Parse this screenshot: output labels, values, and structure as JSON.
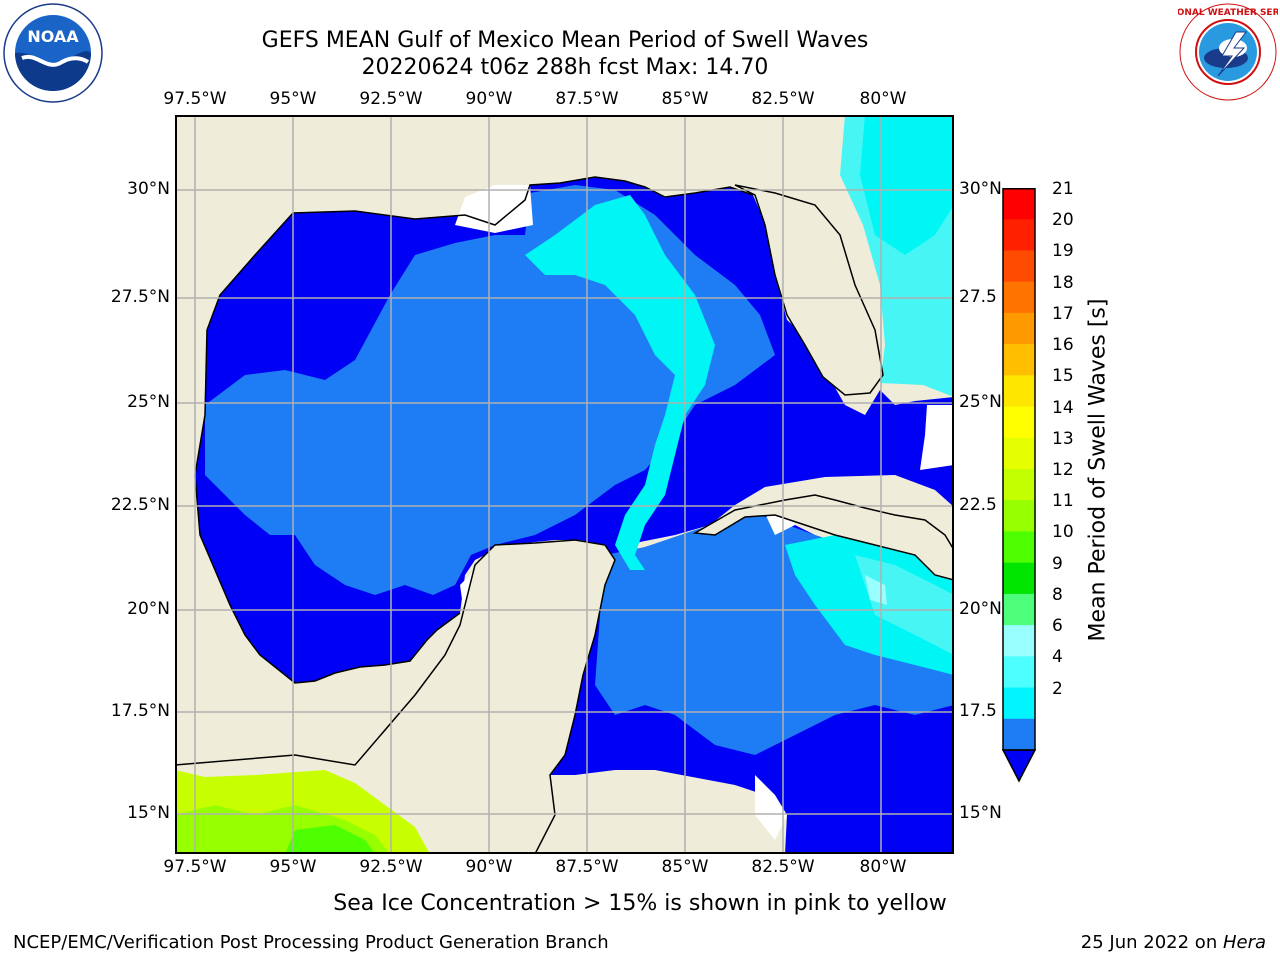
{
  "header": {
    "title_line1": "GEFS MEAN Gulf of Mexico Mean Period of Swell Waves",
    "title_line2": "20220624 t06z 288h fcst   Max: 14.70"
  },
  "map": {
    "lon_labels": [
      "97.5°W",
      "95°W",
      "92.5°W",
      "90°W",
      "87.5°W",
      "85°W",
      "82.5°W",
      "80°W"
    ],
    "lat_labels_left": [
      "30°N",
      "27.5°N",
      "25°N",
      "22.5°N",
      "20°N",
      "17.5°N",
      "15°N"
    ],
    "lat_labels_right": [
      "30°N",
      "27.5",
      "25°N",
      "22.5",
      "20°N",
      "17.5",
      "15°N"
    ],
    "colors": {
      "land": "#efedd9",
      "period_2": "#0000f5",
      "period_4": "#1e7df5",
      "period_6": "#00f5f5",
      "period_8": "#48f5f5",
      "ice": "#c8ff00"
    }
  },
  "colorbar": {
    "title": "Mean Period of Swell Waves [s]",
    "tick_labels": [
      "21",
      "20",
      "19",
      "18",
      "17",
      "16",
      "15",
      "14",
      "13",
      "12",
      "11",
      "10",
      "9",
      "8",
      "6",
      "4",
      "2"
    ],
    "colors": [
      "#ff0000",
      "#ff2000",
      "#ff4b00",
      "#ff7300",
      "#ff9900",
      "#ffbf00",
      "#ffe600",
      "#ffff00",
      "#e6ff00",
      "#c3ff00",
      "#96ff00",
      "#4dff00",
      "#00e600",
      "#4dff7a",
      "#99ffff",
      "#4dffff",
      "#00f5ff",
      "#1e7df5"
    ],
    "extend_color": "#0000f5"
  },
  "logos": {
    "noaa_text": "NOAA",
    "nws_text": "NATIONAL WEATHER SERVICE"
  },
  "note": "Sea Ice Concentration > 15% is shown in pink to yellow",
  "footer": {
    "left": "NCEP/EMC/Verification Post Processing Product Generation Branch",
    "right_date": "25 Jun 2022 on ",
    "right_machine": "Hera"
  }
}
